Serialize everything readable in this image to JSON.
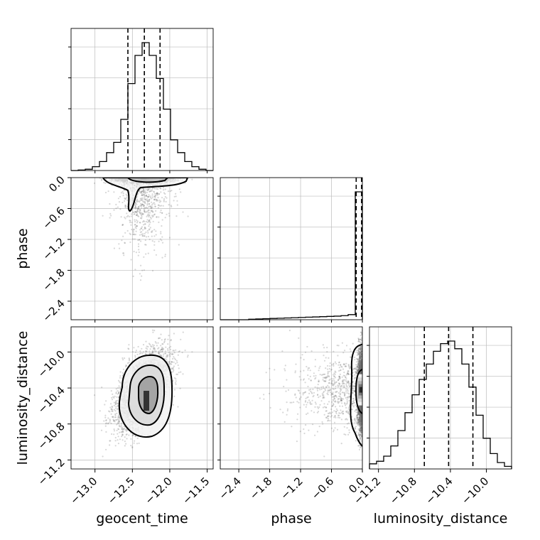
{
  "chart_data": {
    "type": "corner",
    "parameters": [
      "geocent_time",
      "phase",
      "luminosity_distance"
    ],
    "x_axis_labels": {
      "geocent_time": "geocent_time",
      "phase": "phase",
      "luminosity_distance": "luminosity_distance"
    },
    "y_axis_labels": {
      "phase": "phase",
      "luminosity_distance": "luminosity_distance"
    },
    "ranges": {
      "geocent_time": [
        -13.32,
        -11.42
      ],
      "phase": [
        -2.76,
        0.0
      ],
      "luminosity_distance": [
        -11.3,
        -9.72
      ]
    },
    "ticks": {
      "geocent_time": [
        {
          "value": -13.0,
          "label": "−13.0"
        },
        {
          "value": -12.5,
          "label": "−12.5"
        },
        {
          "value": -12.0,
          "label": "−12.0"
        },
        {
          "value": -11.5,
          "label": "−11.5"
        }
      ],
      "phase": [
        {
          "value": -2.4,
          "label": "−2.4"
        },
        {
          "value": -1.8,
          "label": "−1.8"
        },
        {
          "value": -1.2,
          "label": "−1.2"
        },
        {
          "value": -0.6,
          "label": "−0.6"
        },
        {
          "value": 0.0,
          "label": "0.0"
        }
      ],
      "luminosity_distance": [
        {
          "value": -11.2,
          "label": "−11.2"
        },
        {
          "value": -10.8,
          "label": "−10.8"
        },
        {
          "value": -10.4,
          "label": "−10.4"
        },
        {
          "value": -10.0,
          "label": "−10.0"
        }
      ]
    },
    "quantiles": {
      "geocent_time": [
        -12.56,
        -12.34,
        -12.13
      ],
      "phase": [
        -0.12,
        -0.003,
        0.0
      ],
      "luminosity_distance": [
        -10.69,
        -10.42,
        -10.15
      ]
    },
    "histograms": {
      "geocent_time": {
        "bin_edges": [
          -13.32,
          -13.225,
          -13.13,
          -13.035,
          -12.94,
          -12.845,
          -12.75,
          -12.655,
          -12.56,
          -12.465,
          -12.37,
          -12.275,
          -12.18,
          -12.085,
          -11.99,
          -11.895,
          -11.8,
          -11.705,
          -11.61,
          -11.515,
          -11.42
        ],
        "counts": [
          0.0,
          0.004,
          0.01,
          0.03,
          0.07,
          0.14,
          0.22,
          0.4,
          0.68,
          0.9,
          1.0,
          0.9,
          0.72,
          0.48,
          0.24,
          0.14,
          0.07,
          0.03,
          0.01,
          0.0
        ]
      },
      "phase": {
        "bin_edges": [
          -2.76,
          -2.622,
          -2.484,
          -2.346,
          -2.208,
          -2.07,
          -1.932,
          -1.794,
          -1.656,
          -1.518,
          -1.38,
          -1.242,
          -1.104,
          -0.966,
          -0.828,
          -0.69,
          -0.552,
          -0.414,
          -0.276,
          -0.138,
          0.0
        ],
        "counts": [
          0.0,
          0.0,
          0.0,
          0.0,
          0.004,
          0.006,
          0.008,
          0.01,
          0.012,
          0.014,
          0.016,
          0.018,
          0.02,
          0.022,
          0.024,
          0.026,
          0.028,
          0.032,
          0.04,
          1.0
        ]
      },
      "luminosity_distance": {
        "bin_edges": [
          -11.3,
          -11.221,
          -11.142,
          -11.063,
          -10.984,
          -10.905,
          -10.826,
          -10.747,
          -10.668,
          -10.589,
          -10.51,
          -10.431,
          -10.352,
          -10.273,
          -10.194,
          -10.115,
          -10.036,
          -9.957,
          -9.878,
          -9.799,
          -9.72
        ],
        "counts": [
          0.04,
          0.06,
          0.1,
          0.18,
          0.3,
          0.44,
          0.58,
          0.7,
          0.82,
          0.92,
          0.98,
          1.0,
          0.94,
          0.82,
          0.64,
          0.42,
          0.24,
          0.12,
          0.05,
          0.02
        ]
      }
    },
    "pairs": [
      {
        "x": "geocent_time",
        "y": "phase",
        "density_peak": [
          -12.35,
          -0.02
        ],
        "contour_levels": [
          0.39,
          0.86
        ]
      },
      {
        "x": "geocent_time",
        "y": "luminosity_distance",
        "density_peak": [
          -12.35,
          -10.42
        ],
        "contour_levels": [
          0.39,
          0.86,
          0.99
        ]
      },
      {
        "x": "phase",
        "y": "luminosity_distance",
        "density_peak": [
          -0.02,
          -10.42
        ],
        "contour_levels": [
          0.39,
          0.86
        ]
      }
    ],
    "grid": true
  }
}
